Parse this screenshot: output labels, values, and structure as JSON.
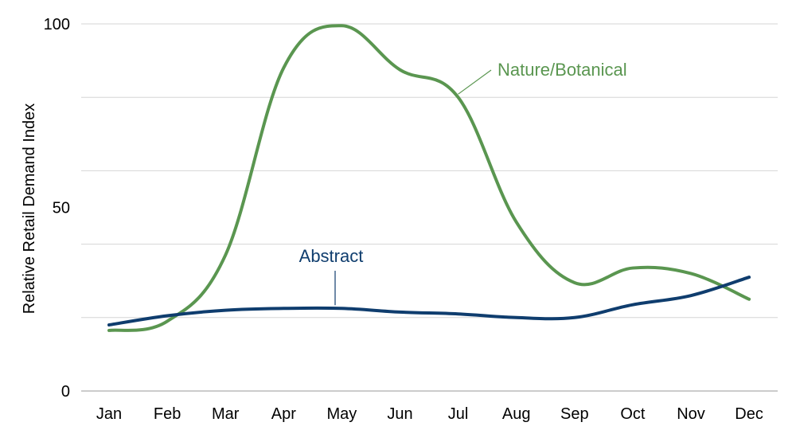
{
  "chart_data": {
    "type": "line",
    "title": "",
    "xlabel": "",
    "ylabel": "Relative Retail Demand Index",
    "ylim": [
      0,
      100
    ],
    "yticks": [
      0,
      50,
      100
    ],
    "grid": true,
    "legend": "inline labels",
    "categories": [
      "Jan",
      "Feb",
      "Mar",
      "Apr",
      "May",
      "Jun",
      "Jul",
      "Aug",
      "Sep",
      "Oct",
      "Nov",
      "Dec"
    ],
    "series": [
      {
        "name": "Nature/Botanical",
        "color": "#5a9650",
        "values": [
          16.5,
          19,
          37,
          88,
          99.5,
          87.5,
          80,
          46,
          29.5,
          33.5,
          32,
          25
        ]
      },
      {
        "name": "Abstract",
        "color": "#0f3d6e",
        "values": [
          18,
          20.5,
          22,
          22.5,
          22.5,
          21.5,
          21,
          20,
          20,
          23.5,
          26,
          31
        ]
      }
    ]
  }
}
